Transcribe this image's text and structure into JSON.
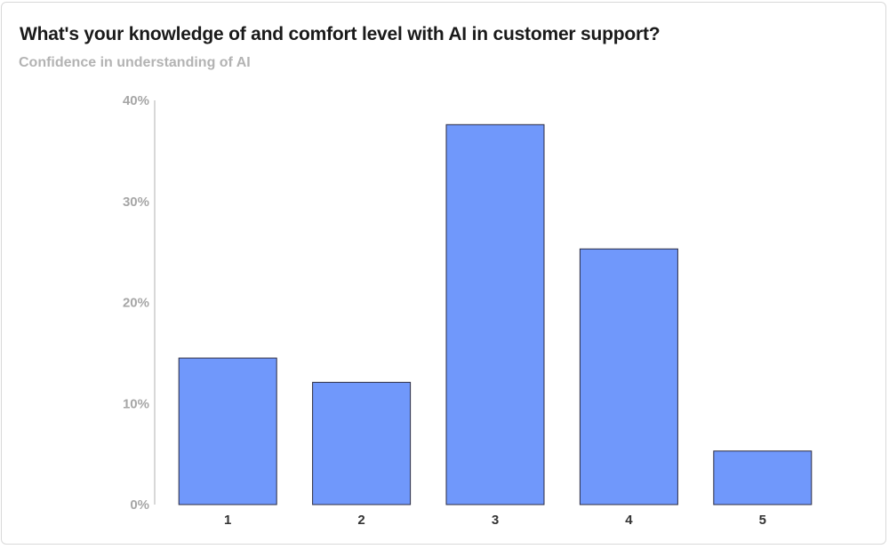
{
  "chart_data": {
    "type": "bar",
    "title": "What's your knowledge of and comfort level with AI in customer support?",
    "subtitle": "Confidence in understanding of AI",
    "xlabel": "",
    "ylabel": "",
    "categories": [
      "1",
      "2",
      "3",
      "4",
      "5"
    ],
    "values": [
      14.5,
      12.1,
      37.6,
      25.3,
      5.3
    ],
    "ylim": [
      0,
      40
    ],
    "yticks": [
      {
        "value": 0,
        "label": "0%"
      },
      {
        "value": 10,
        "label": "10%"
      },
      {
        "value": 20,
        "label": "20%"
      },
      {
        "value": 30,
        "label": "30%"
      },
      {
        "value": 40,
        "label": "40%"
      }
    ],
    "grid": false,
    "legend": "none",
    "colors": {
      "bar": "#7098fb",
      "bar_stroke": "#2b2b40",
      "axis": "#bfbfbf"
    }
  }
}
